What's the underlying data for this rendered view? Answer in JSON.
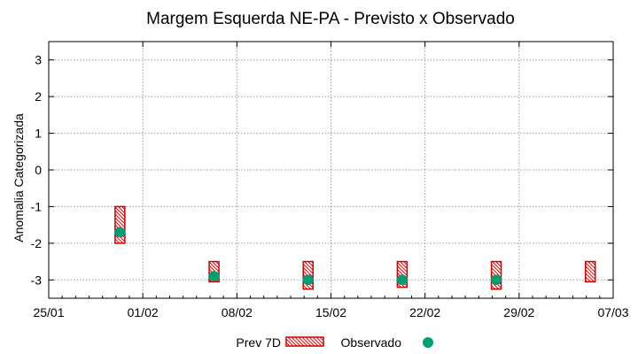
{
  "chart_data": {
    "type": "scatter",
    "title": "Margem Esquerda NE-PA - Previsto x Observado",
    "xlabel": "",
    "ylabel": "Anomalia Categorizada",
    "x_ticks": [
      "25/01",
      "01/02",
      "08/02",
      "15/02",
      "22/02",
      "29/02",
      "07/03"
    ],
    "x_range_days": [
      0,
      42
    ],
    "y_ticks": [
      "3",
      "2",
      "1",
      "0",
      "-1",
      "-2",
      "-3"
    ],
    "ylim": [
      -3.5,
      3.5
    ],
    "grid": true,
    "colors": {
      "prev": "#cc0000",
      "obs": "#009e73",
      "grid": "#9a9a9a"
    },
    "series": [
      {
        "name": "Prev 7D",
        "kind": "range-box",
        "points": [
          {
            "day": 5.3,
            "low": -2.0,
            "high": -1.0
          },
          {
            "day": 12.3,
            "low": -3.05,
            "high": -2.5
          },
          {
            "day": 19.3,
            "low": -3.25,
            "high": -2.5
          },
          {
            "day": 26.3,
            "low": -3.2,
            "high": -2.5
          },
          {
            "day": 33.3,
            "low": -3.25,
            "high": -2.5
          },
          {
            "day": 40.3,
            "low": -3.05,
            "high": -2.5
          }
        ]
      },
      {
        "name": "Observado",
        "kind": "point",
        "points": [
          {
            "day": 5.3,
            "value": -1.7
          },
          {
            "day": 12.3,
            "value": -2.9
          },
          {
            "day": 19.3,
            "value": -3.0
          },
          {
            "day": 26.3,
            "value": -3.0
          },
          {
            "day": 33.3,
            "value": -3.0
          }
        ]
      }
    ],
    "legend": {
      "placement": "bottom-center",
      "entries": [
        "Prev 7D",
        "Observado"
      ]
    }
  }
}
